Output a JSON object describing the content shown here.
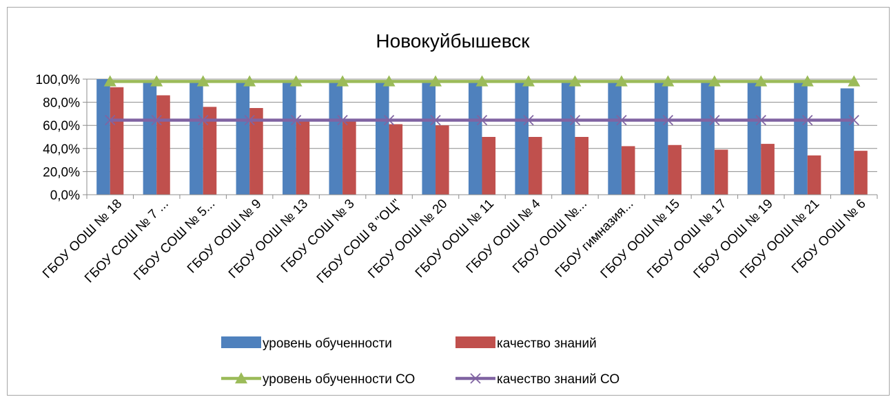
{
  "chart_data": {
    "type": "bar",
    "title": "Новокуйбышевск",
    "categories": [
      "ГБОУ ООШ № 18",
      "ГБОУ СОШ № 7 ...",
      "ГБОУ СОШ № 5...",
      "ГБОУ ООШ № 9",
      "ГБОУ ООШ № 13",
      "ГБОУ СОШ № 3",
      "ГБОУ СОШ 8 \"ОЦ\"",
      "ГБОУ ООШ № 20",
      "ГБОУ ООШ № 11",
      "ГБОУ ООШ № 4",
      "ГБОУ ООШ №...",
      "ГБОУ гимназия...",
      "ГБОУ ООШ № 15",
      "ГБОУ ООШ № 17",
      "ГБОУ ООШ № 19",
      "ГБОУ ООШ № 21",
      "ГБОУ ООШ № 6"
    ],
    "series": [
      {
        "name": "уровень обученности",
        "kind": "bar",
        "color": "#4f81bd",
        "values": [
          100,
          98,
          98,
          98,
          98,
          98,
          98,
          97,
          97,
          97,
          97,
          97,
          97,
          97,
          97,
          97,
          92
        ]
      },
      {
        "name": "качество знаний",
        "kind": "bar",
        "color": "#c0504d",
        "values": [
          93,
          86,
          76,
          75,
          65,
          65,
          61,
          60,
          50,
          50,
          50,
          42,
          43,
          39,
          44,
          34,
          38
        ]
      },
      {
        "name": "уровень обученности СО",
        "kind": "line",
        "marker": "triangle",
        "color": "#9bbb59",
        "values": [
          98,
          98,
          98,
          98,
          98,
          98,
          98,
          98,
          98,
          98,
          98,
          98,
          98,
          98,
          98,
          98,
          98
        ]
      },
      {
        "name": "качество знаний СО",
        "kind": "line",
        "marker": "x",
        "color": "#8064a2",
        "values": [
          64.5,
          64.5,
          64.5,
          64.5,
          64.5,
          64.5,
          64.5,
          64.5,
          64.5,
          64.5,
          64.5,
          64.5,
          64.5,
          64.5,
          64.5,
          64.5,
          64.5
        ]
      }
    ],
    "y_ticks": [
      "0,0%",
      "20,0%",
      "40,0%",
      "60,0%",
      "80,0%",
      "100,0%"
    ],
    "ylim": [
      0,
      100
    ],
    "grid": true,
    "legend_position": "bottom"
  }
}
